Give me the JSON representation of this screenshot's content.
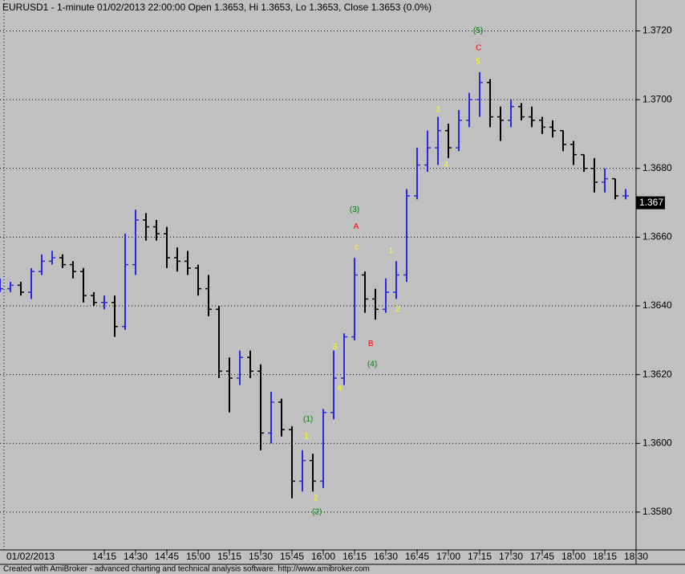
{
  "title": "EURUSD1 - 1-minute 01/02/2013 22:00:00 Open 1.3653, Hi 1.3653, Lo 1.3653, Close 1.3653 (0.0%)",
  "footer": "Created with AmiBroker - advanced charting and technical analysis software. http://www.amibroker.com",
  "chart_data": {
    "type": "ohlc",
    "categories": [
      "01/02/2013",
      null,
      null,
      null,
      null,
      null,
      null,
      null,
      null,
      null,
      "14:15",
      null,
      null,
      "14:30",
      null,
      null,
      "14:45",
      null,
      null,
      "15:00",
      null,
      null,
      "15:15",
      null,
      null,
      "15:30",
      null,
      null,
      "15:45",
      null,
      null,
      "16:00",
      null,
      null,
      "16:15",
      null,
      null,
      "16:30",
      null,
      null,
      "16:45",
      null,
      null,
      "17:00",
      null,
      null,
      "17:15",
      null,
      null,
      "17:30",
      null,
      null,
      "17:45",
      null,
      null,
      "18:00",
      null,
      null,
      "18:15",
      null,
      null,
      "18:30"
    ],
    "open": [
      1.3645,
      1.3645,
      1.3646,
      1.3644,
      1.365,
      1.3653,
      1.3654,
      1.3652,
      1.365,
      1.3643,
      1.3641,
      1.3641,
      1.3634,
      1.3652,
      1.3665,
      1.3663,
      1.3661,
      1.3654,
      1.3653,
      1.3651,
      1.3645,
      1.3639,
      1.3621,
      1.3619,
      1.3625,
      1.3621,
      1.3603,
      1.3612,
      1.3604,
      1.3589,
      1.3595,
      1.3589,
      1.3609,
      1.3619,
      1.3631,
      1.3649,
      1.3642,
      1.3639,
      1.3644,
      1.3649,
      1.3672,
      1.3681,
      1.3686,
      1.3691,
      1.3686,
      1.3694,
      1.37,
      1.3705,
      1.3695,
      1.3694,
      1.3698,
      1.3695,
      1.3694,
      1.3692,
      1.3691,
      1.3687,
      1.3684,
      1.368,
      1.3676,
      1.3677,
      1.3672,
      null
    ],
    "high": [
      1.3648,
      1.3647,
      1.3647,
      1.3651,
      1.3655,
      1.3656,
      1.3655,
      1.3653,
      1.3651,
      1.3644,
      1.3643,
      1.3643,
      1.3661,
      1.3668,
      1.3667,
      1.3665,
      1.3663,
      1.3657,
      1.3656,
      1.3652,
      1.3649,
      1.364,
      1.3625,
      1.3627,
      1.3627,
      1.3623,
      1.3615,
      1.3613,
      1.3605,
      1.3598,
      1.3597,
      1.361,
      1.3627,
      1.3632,
      1.3654,
      1.365,
      1.3645,
      1.3648,
      1.3653,
      1.3674,
      1.3686,
      1.3691,
      1.3695,
      1.3693,
      1.3697,
      1.3702,
      1.3708,
      1.3706,
      1.3698,
      1.37,
      1.3699,
      1.3698,
      1.3695,
      1.3694,
      1.3691,
      1.3688,
      1.3684,
      1.3683,
      1.368,
      1.3677,
      1.3674,
      null
    ],
    "low": [
      1.3644,
      1.3644,
      1.3643,
      1.3642,
      1.3649,
      1.3652,
      1.3651,
      1.3648,
      1.3641,
      1.364,
      1.3639,
      1.3631,
      1.3633,
      1.3649,
      1.3659,
      1.3659,
      1.3651,
      1.365,
      1.3649,
      1.3643,
      1.3637,
      1.3619,
      1.3609,
      1.3617,
      1.3619,
      1.3598,
      1.36,
      1.3602,
      1.3584,
      1.3586,
      1.3586,
      1.3587,
      1.3607,
      1.3617,
      1.363,
      1.3638,
      1.3636,
      1.3638,
      1.3642,
      1.3647,
      1.3671,
      1.3679,
      1.3681,
      1.3683,
      1.3685,
      1.3692,
      1.3695,
      1.3692,
      1.3688,
      1.3692,
      1.3694,
      1.3692,
      1.369,
      1.3689,
      1.3685,
      1.3681,
      1.3679,
      1.3673,
      1.3673,
      1.3671,
      1.3671,
      null
    ],
    "close": [
      1.3645,
      1.3646,
      1.3644,
      1.365,
      1.3653,
      1.3654,
      1.3652,
      1.365,
      1.3643,
      1.3641,
      1.3641,
      1.3634,
      1.3652,
      1.3665,
      1.3663,
      1.3661,
      1.3654,
      1.3653,
      1.3651,
      1.3645,
      1.3639,
      1.3621,
      1.3619,
      1.3625,
      1.3621,
      1.3603,
      1.3612,
      1.3604,
      1.3589,
      1.3595,
      1.3589,
      1.3609,
      1.3619,
      1.3631,
      1.3649,
      1.3642,
      1.3639,
      1.3644,
      1.3649,
      1.3672,
      1.3681,
      1.3686,
      1.3691,
      1.3686,
      1.3694,
      1.37,
      1.3705,
      1.3695,
      1.3694,
      1.3698,
      1.3695,
      1.3694,
      1.3692,
      1.3691,
      1.3687,
      1.3684,
      1.368,
      1.3676,
      1.3677,
      1.3672,
      1.3672,
      null
    ],
    "up_color": "#2a2ad8",
    "down_color": "#000000",
    "ylim": [
      1.3569,
      1.3729
    ],
    "yticks": [
      {
        "value": 1.358,
        "label": "1.3580"
      },
      {
        "value": 1.36,
        "label": "1.3600"
      },
      {
        "value": 1.362,
        "label": "1.3620"
      },
      {
        "value": 1.364,
        "label": "1.3640"
      },
      {
        "value": 1.366,
        "label": "1.3660"
      },
      {
        "value": 1.368,
        "label": "1.3680"
      },
      {
        "value": 1.37,
        "label": "1.3700"
      },
      {
        "value": 1.372,
        "label": "1.3720"
      }
    ],
    "grid": true,
    "last_price": {
      "value": 1.367,
      "label": "1.367"
    },
    "annotations": [
      {
        "text": "(5)",
        "x": 45.85,
        "y": 1.372,
        "color": "#008000"
      },
      {
        "text": "C",
        "x": 45.9,
        "y": 1.3715,
        "color": "#ff0000"
      },
      {
        "text": "5",
        "x": 45.85,
        "y": 1.3711,
        "color": "#ffff00"
      },
      {
        "text": "3",
        "x": 42,
        "y": 1.3697,
        "color": "#ffff00"
      },
      {
        "text": "4",
        "x": 42.8,
        "y": 1.3681,
        "color": "#ffff00"
      },
      {
        "text": "(3)",
        "x": 34,
        "y": 1.3668,
        "color": "#008000"
      },
      {
        "text": "A",
        "x": 34.15,
        "y": 1.3663,
        "color": "#ff0000"
      },
      {
        "text": "c",
        "x": 34.2,
        "y": 1.3657,
        "color": "#ffff00"
      },
      {
        "text": "1",
        "x": 37.5,
        "y": 1.3656,
        "color": "#ffff00"
      },
      {
        "text": "2",
        "x": 38.15,
        "y": 1.3639,
        "color": "#ffff00"
      },
      {
        "text": "B",
        "x": 35.55,
        "y": 1.3629,
        "color": "#ff0000"
      },
      {
        "text": "(4)",
        "x": 35.7,
        "y": 1.3623,
        "color": "#008000"
      },
      {
        "text": "3",
        "x": 32.1,
        "y": 1.3628,
        "color": "#ffff00"
      },
      {
        "text": "4",
        "x": 32.55,
        "y": 1.3616,
        "color": "#ffff00"
      },
      {
        "text": "(1)",
        "x": 29.55,
        "y": 1.3607,
        "color": "#008000"
      },
      {
        "text": "1",
        "x": 29.4,
        "y": 1.3602,
        "color": "#ffff00"
      },
      {
        "text": "2",
        "x": 30.3,
        "y": 1.3584,
        "color": "#ffff00"
      },
      {
        "text": "(2)",
        "x": 30.4,
        "y": 1.358,
        "color": "#008000"
      }
    ]
  }
}
